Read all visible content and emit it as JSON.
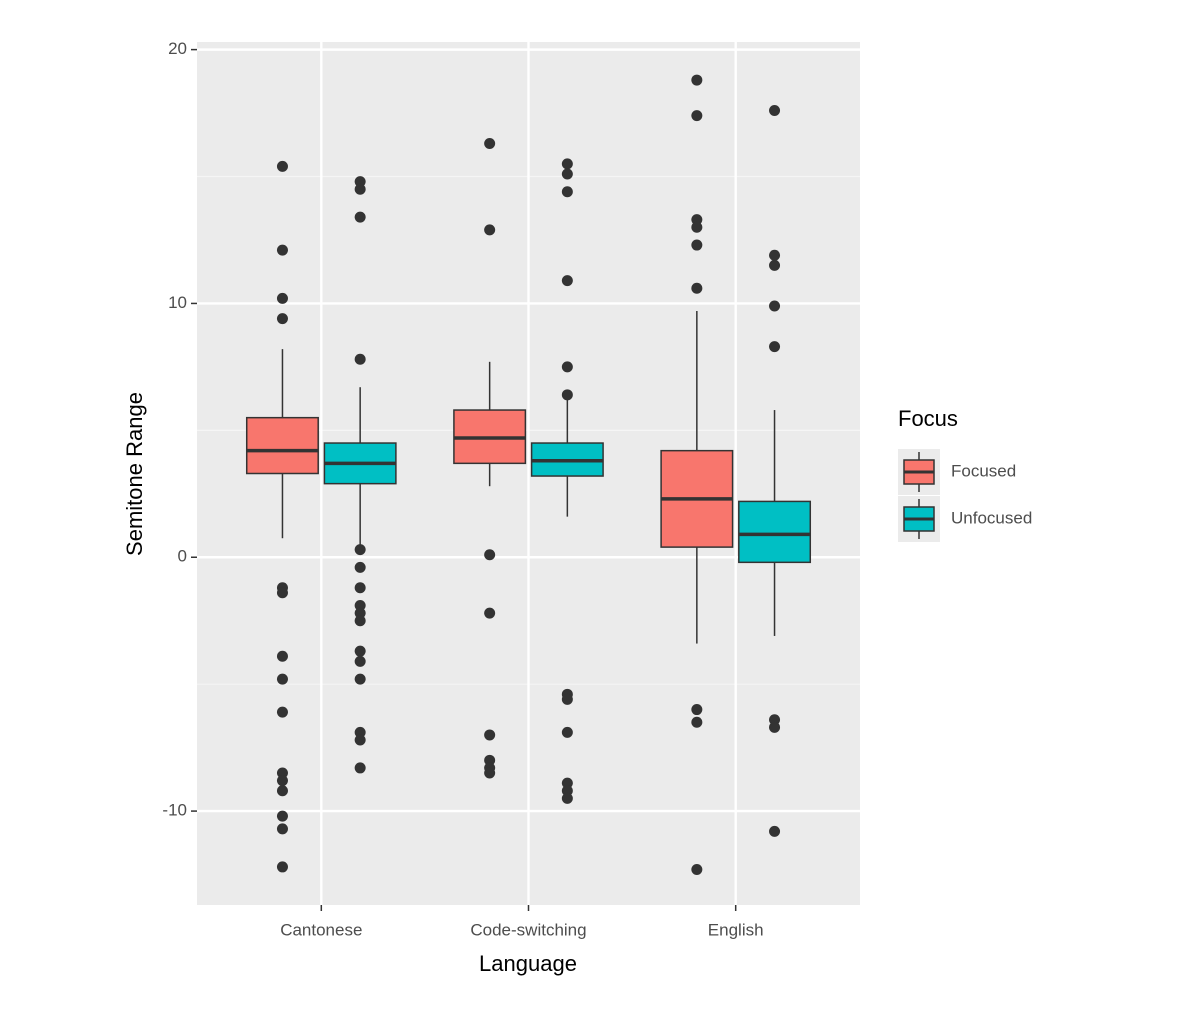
{
  "chart_data": {
    "type": "box",
    "x_label": "Language",
    "y_label": "Semitone Range",
    "categories": [
      "Cantonese",
      "Code-switching",
      "English"
    ],
    "ylim": [
      -13.7,
      20.3
    ],
    "yticks": [
      -10,
      0,
      10,
      20
    ],
    "grid": true,
    "legend_title": "Focus",
    "legend_position": "right",
    "series": [
      {
        "name": "Focused",
        "color": "#F8766D",
        "whisker_low": [
          0.75,
          2.8,
          -3.4
        ],
        "q1": [
          3.3,
          3.7,
          0.4
        ],
        "median": [
          4.2,
          4.7,
          2.3
        ],
        "q3": [
          5.5,
          5.8,
          4.2
        ],
        "whisker_high": [
          8.2,
          7.7,
          9.7
        ],
        "outliers": [
          [
            15.4,
            12.1,
            10.2,
            9.4,
            -1.2,
            -1.4,
            -3.9,
            -4.8,
            -6.1,
            -8.5,
            -8.8,
            -9.2,
            -10.2,
            -10.7,
            -12.2
          ],
          [
            16.3,
            12.9,
            0.1,
            -2.2,
            -7.0,
            -8.0,
            -8.3,
            -8.5
          ],
          [
            18.8,
            17.4,
            13.3,
            13.0,
            12.3,
            10.6,
            -6.0,
            -6.5,
            -12.3
          ]
        ]
      },
      {
        "name": "Unfocused",
        "color": "#00BFC4",
        "whisker_low": [
          0.5,
          1.6,
          -3.1
        ],
        "q1": [
          2.9,
          3.2,
          -0.2
        ],
        "median": [
          3.7,
          3.8,
          0.9
        ],
        "q3": [
          4.5,
          4.5,
          2.2
        ],
        "whisker_high": [
          6.7,
          6.2,
          5.8
        ],
        "outliers": [
          [
            14.8,
            14.5,
            13.4,
            7.8,
            0.3,
            -0.4,
            -1.2,
            -1.9,
            -2.2,
            -2.5,
            -3.7,
            -4.1,
            -4.8,
            -6.9,
            -7.2,
            -8.3
          ],
          [
            15.5,
            15.1,
            14.4,
            10.9,
            7.5,
            6.4,
            -5.4,
            -5.6,
            -6.9,
            -8.9,
            -9.2,
            -9.5
          ],
          [
            17.6,
            11.9,
            11.5,
            9.9,
            8.3,
            -6.4,
            -6.7,
            -10.8
          ]
        ]
      }
    ]
  }
}
